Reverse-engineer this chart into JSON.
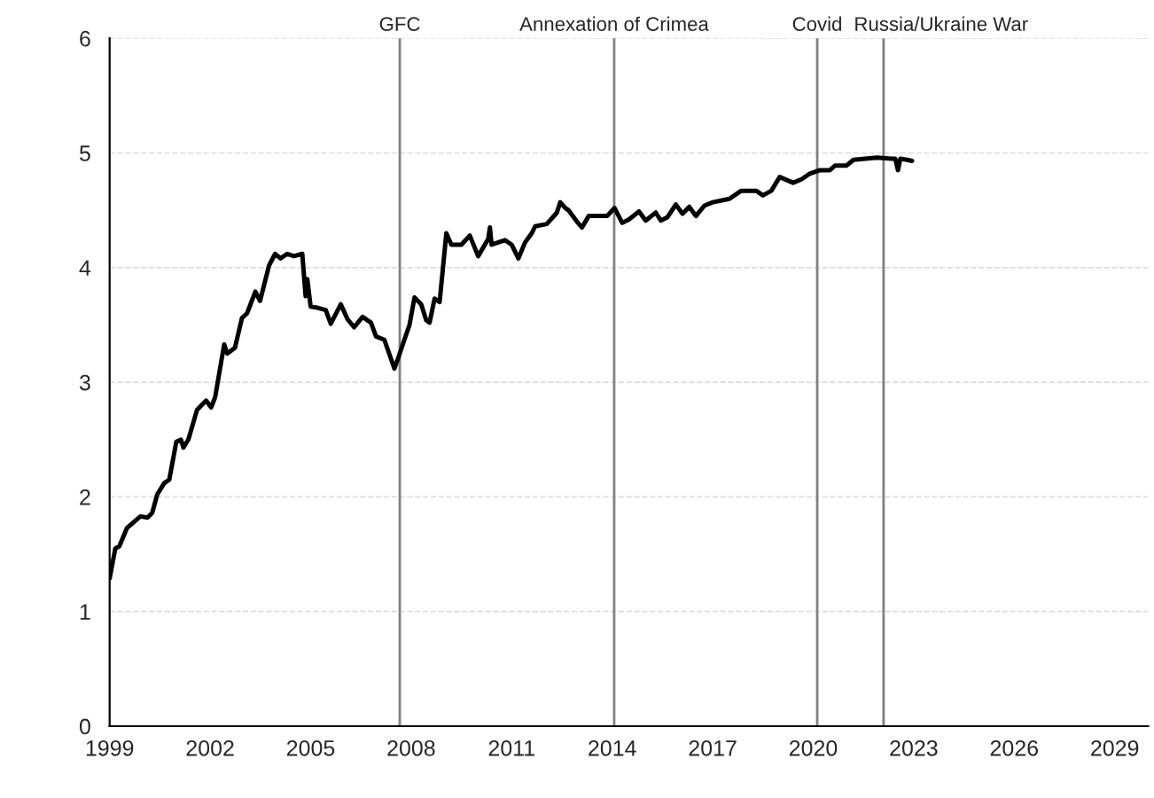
{
  "chart_data": {
    "type": "line",
    "x": [
      1999.0,
      1999.17,
      1999.29,
      1999.52,
      1999.92,
      2000.13,
      2000.27,
      2000.42,
      2000.63,
      2000.78,
      2000.99,
      2001.13,
      2001.2,
      2001.35,
      2001.61,
      2001.88,
      2002.03,
      2002.15,
      2002.42,
      2002.51,
      2002.74,
      2002.95,
      2003.1,
      2003.35,
      2003.49,
      2003.76,
      2003.94,
      2004.1,
      2004.3,
      2004.5,
      2004.75,
      2004.85,
      2004.9,
      2005.0,
      2005.2,
      2005.45,
      2005.6,
      2005.9,
      2006.1,
      2006.3,
      2006.55,
      2006.8,
      2006.95,
      2007.2,
      2007.5,
      2007.6,
      2007.75,
      2007.95,
      2008.1,
      2008.3,
      2008.45,
      2008.55,
      2008.7,
      2008.85,
      2009.05,
      2009.2,
      2009.5,
      2009.75,
      2010.0,
      2010.3,
      2010.35,
      2010.4,
      2010.8,
      2011.0,
      2011.2,
      2011.4,
      2011.6,
      2011.7,
      2012.05,
      2012.35,
      2012.45,
      2012.6,
      2012.7,
      2012.95,
      2013.1,
      2013.3,
      2013.6,
      2013.85,
      2014.07,
      2014.3,
      2014.5,
      2014.8,
      2015.0,
      2015.3,
      2015.45,
      2015.65,
      2015.9,
      2016.1,
      2016.3,
      2016.5,
      2016.75,
      2017.0,
      2017.5,
      2017.85,
      2018.3,
      2018.5,
      2018.75,
      2019.0,
      2019.4,
      2019.65,
      2019.9,
      2020.2,
      2020.5,
      2020.65,
      2021.0,
      2021.2,
      2021.55,
      2021.9,
      2022.35,
      2022.45,
      2022.53,
      2022.6,
      2022.8,
      2022.95
    ],
    "series": [
      {
        "color": "#000000",
        "values": [
          1.29,
          1.55,
          1.57,
          1.73,
          1.83,
          1.82,
          1.86,
          2.02,
          2.12,
          2.15,
          2.48,
          2.5,
          2.43,
          2.5,
          2.76,
          2.84,
          2.78,
          2.87,
          3.33,
          3.25,
          3.3,
          3.56,
          3.6,
          3.79,
          3.71,
          4.02,
          4.12,
          4.08,
          4.12,
          4.1,
          4.12,
          3.75,
          3.9,
          3.66,
          3.65,
          3.63,
          3.51,
          3.68,
          3.55,
          3.48,
          3.57,
          3.52,
          3.4,
          3.37,
          3.12,
          3.2,
          3.33,
          3.5,
          3.74,
          3.68,
          3.54,
          3.52,
          3.73,
          3.7,
          4.3,
          4.2,
          4.2,
          4.28,
          4.1,
          4.25,
          4.35,
          4.2,
          4.24,
          4.2,
          4.08,
          4.22,
          4.3,
          4.36,
          4.38,
          4.48,
          4.57,
          4.52,
          4.5,
          4.4,
          4.35,
          4.45,
          4.45,
          4.45,
          4.52,
          4.39,
          4.42,
          4.49,
          4.41,
          4.48,
          4.41,
          4.44,
          4.55,
          4.47,
          4.53,
          4.45,
          4.54,
          4.57,
          4.6,
          4.67,
          4.67,
          4.63,
          4.67,
          4.79,
          4.74,
          4.77,
          4.82,
          4.85,
          4.85,
          4.89,
          4.89,
          4.94,
          4.95,
          4.96,
          4.95,
          4.95,
          4.85,
          4.95,
          4.94,
          4.93
        ]
      }
    ],
    "xlim": [
      1999,
      2030
    ],
    "xticks": [
      1999,
      2002,
      2005,
      2008,
      2011,
      2014,
      2017,
      2020,
      2023,
      2026,
      2029
    ],
    "ylim": [
      0,
      6
    ],
    "yticks": [
      0,
      1,
      2,
      3,
      4,
      5,
      6
    ],
    "grid": "y",
    "line_style": "solid",
    "marker": "none",
    "legend": false,
    "ref_lines": [
      {
        "axis": "x",
        "value": 2007.66,
        "label": "GFC",
        "color": "#808080"
      },
      {
        "axis": "x",
        "value": 2014.06,
        "label": "Annexation of Crimea",
        "color": "#808080"
      },
      {
        "axis": "x",
        "value": 2020.12,
        "label": "Covid",
        "color": "#808080"
      },
      {
        "axis": "x",
        "value": 2022.1,
        "label": "Russia/Ukraine War",
        "color": "#808080"
      }
    ]
  }
}
